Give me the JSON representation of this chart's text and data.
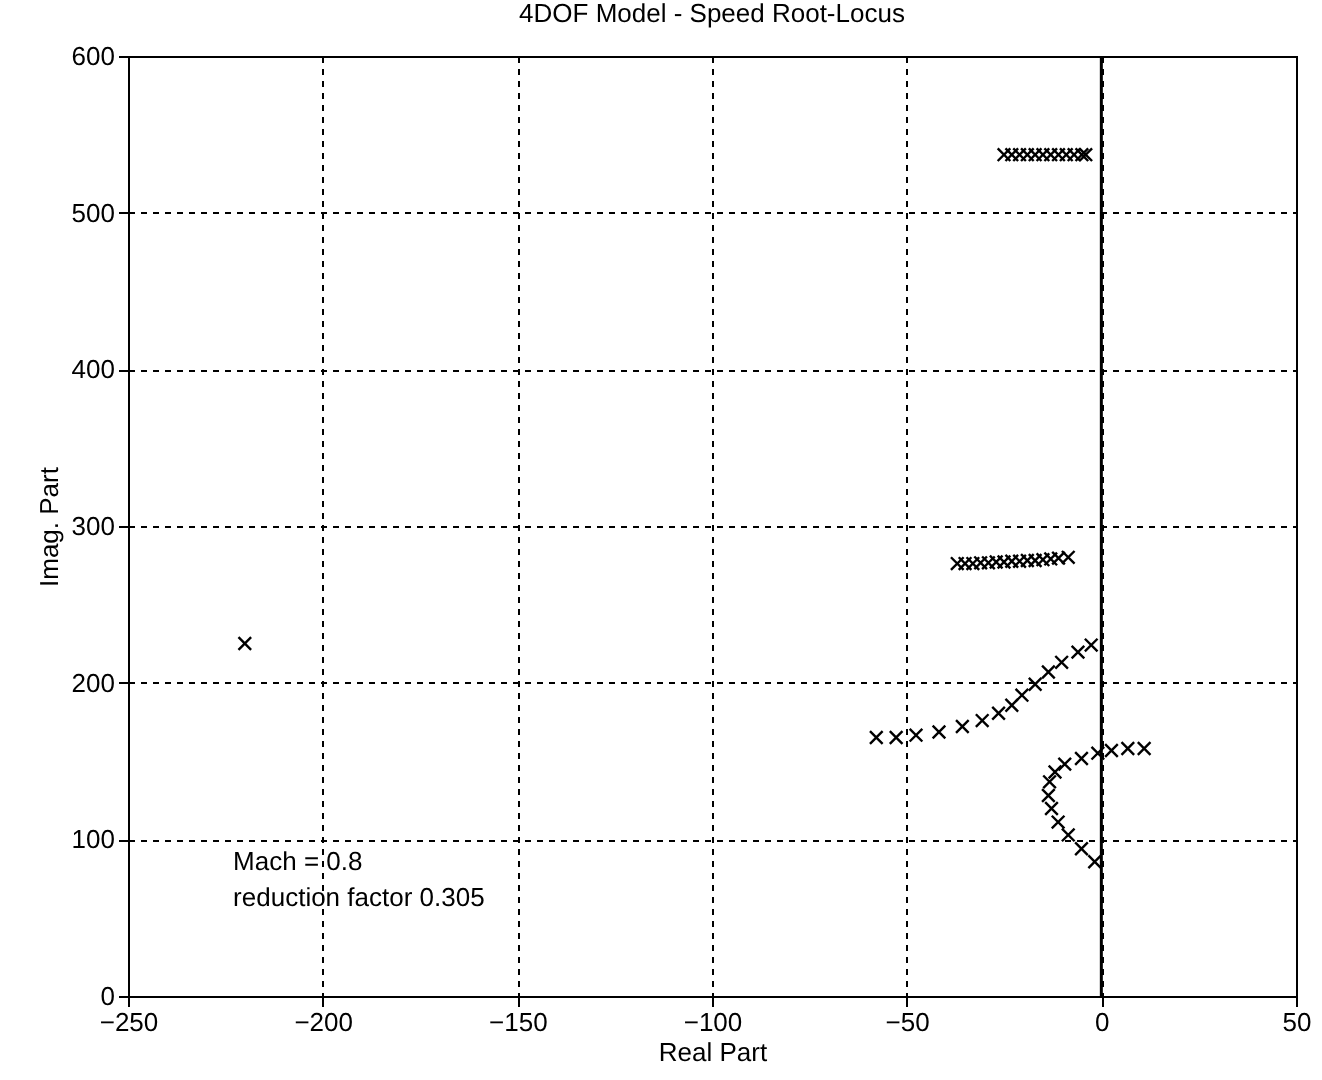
{
  "chart_data": {
    "type": "scatter",
    "title": "4DOF Model  - Speed Root-Locus",
    "xlabel": "Real Part",
    "ylabel": "Imag. Part",
    "annotations": [
      "Mach = 0.8",
      "reduction factor 0.305"
    ],
    "series": [
      {
        "color": "#000000",
        "x": [
          -220,
          -57.8,
          -52.7,
          -47.6,
          -41.7,
          -35.7,
          -30.6,
          -26.4,
          -23,
          -20.4,
          -17,
          -13.6,
          -10.2,
          -6,
          -2.6,
          11,
          6.8,
          2.6,
          -0.9,
          -5.1,
          -9.4,
          -11.9,
          -13.3,
          -13.6,
          -12.8,
          -11.1,
          -8.5,
          -5.1,
          -1.7,
          -37,
          -35,
          -33,
          -31,
          -29,
          -27,
          -25,
          -23,
          -21,
          -19,
          -17,
          -15,
          -13,
          -11,
          -8.5,
          -25,
          -23,
          -21,
          -19,
          -17,
          -15,
          -13,
          -11,
          -9,
          -7,
          -5,
          -4
        ],
        "values": [
          225,
          165,
          165,
          166.5,
          168.5,
          172,
          175.8,
          180.5,
          185.6,
          192,
          199,
          206.8,
          213,
          219.5,
          224,
          158,
          158,
          156.7,
          155,
          151.6,
          148,
          143,
          136.7,
          128,
          119.7,
          111,
          102.8,
          94,
          85.7,
          276,
          276,
          276,
          276.5,
          276.5,
          277,
          277,
          277.5,
          277.5,
          278,
          278,
          278.5,
          279,
          279.5,
          280,
          537,
          537,
          537,
          537,
          537,
          537,
          537,
          537,
          537,
          537,
          537,
          537
        ]
      }
    ],
    "xlim": [
      -250,
      50
    ],
    "xticks": [
      -250,
      -200,
      -150,
      -100,
      -50,
      0,
      50
    ],
    "ylim": [
      0,
      600
    ],
    "yticks": [
      0,
      100,
      200,
      300,
      400,
      500,
      600
    ],
    "ref_lines": [
      {
        "axis": "x",
        "value": 0,
        "color": "#000000",
        "line_style": "solid"
      }
    ],
    "grid": true,
    "marker": "cross",
    "legend": false
  }
}
